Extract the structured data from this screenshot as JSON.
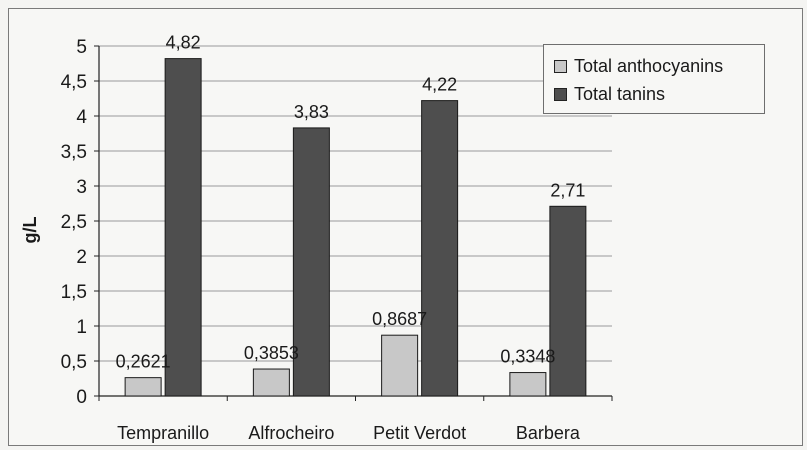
{
  "chart_data": {
    "type": "bar",
    "categories": [
      "Tempranillo",
      "Alfrocheiro",
      "Petit Verdot",
      "Barbera"
    ],
    "series": [
      {
        "name": "Total anthocyanins",
        "values": [
          0.2621,
          0.3853,
          0.8687,
          0.3348
        ],
        "labels": [
          "0,2621",
          "0,3853",
          "0,8687",
          "0,3348"
        ],
        "color": "#c8c8c8"
      },
      {
        "name": "Total tanins",
        "values": [
          4.82,
          3.83,
          4.22,
          2.71
        ],
        "labels": [
          "4,82",
          "3,83",
          "4,22",
          "2,71"
        ],
        "color": "#4e4e4e"
      }
    ],
    "ylabel": "g/L",
    "ylim": [
      0,
      5
    ],
    "yticks": [
      0,
      0.5,
      1,
      1.5,
      2,
      2.5,
      3,
      3.5,
      4,
      4.5,
      5
    ],
    "ytick_labels": [
      "0",
      "0,5",
      "1",
      "1,5",
      "2",
      "2,5",
      "3",
      "3,5",
      "4",
      "4,5",
      "5"
    ],
    "grid": true,
    "legend": "top-right"
  }
}
